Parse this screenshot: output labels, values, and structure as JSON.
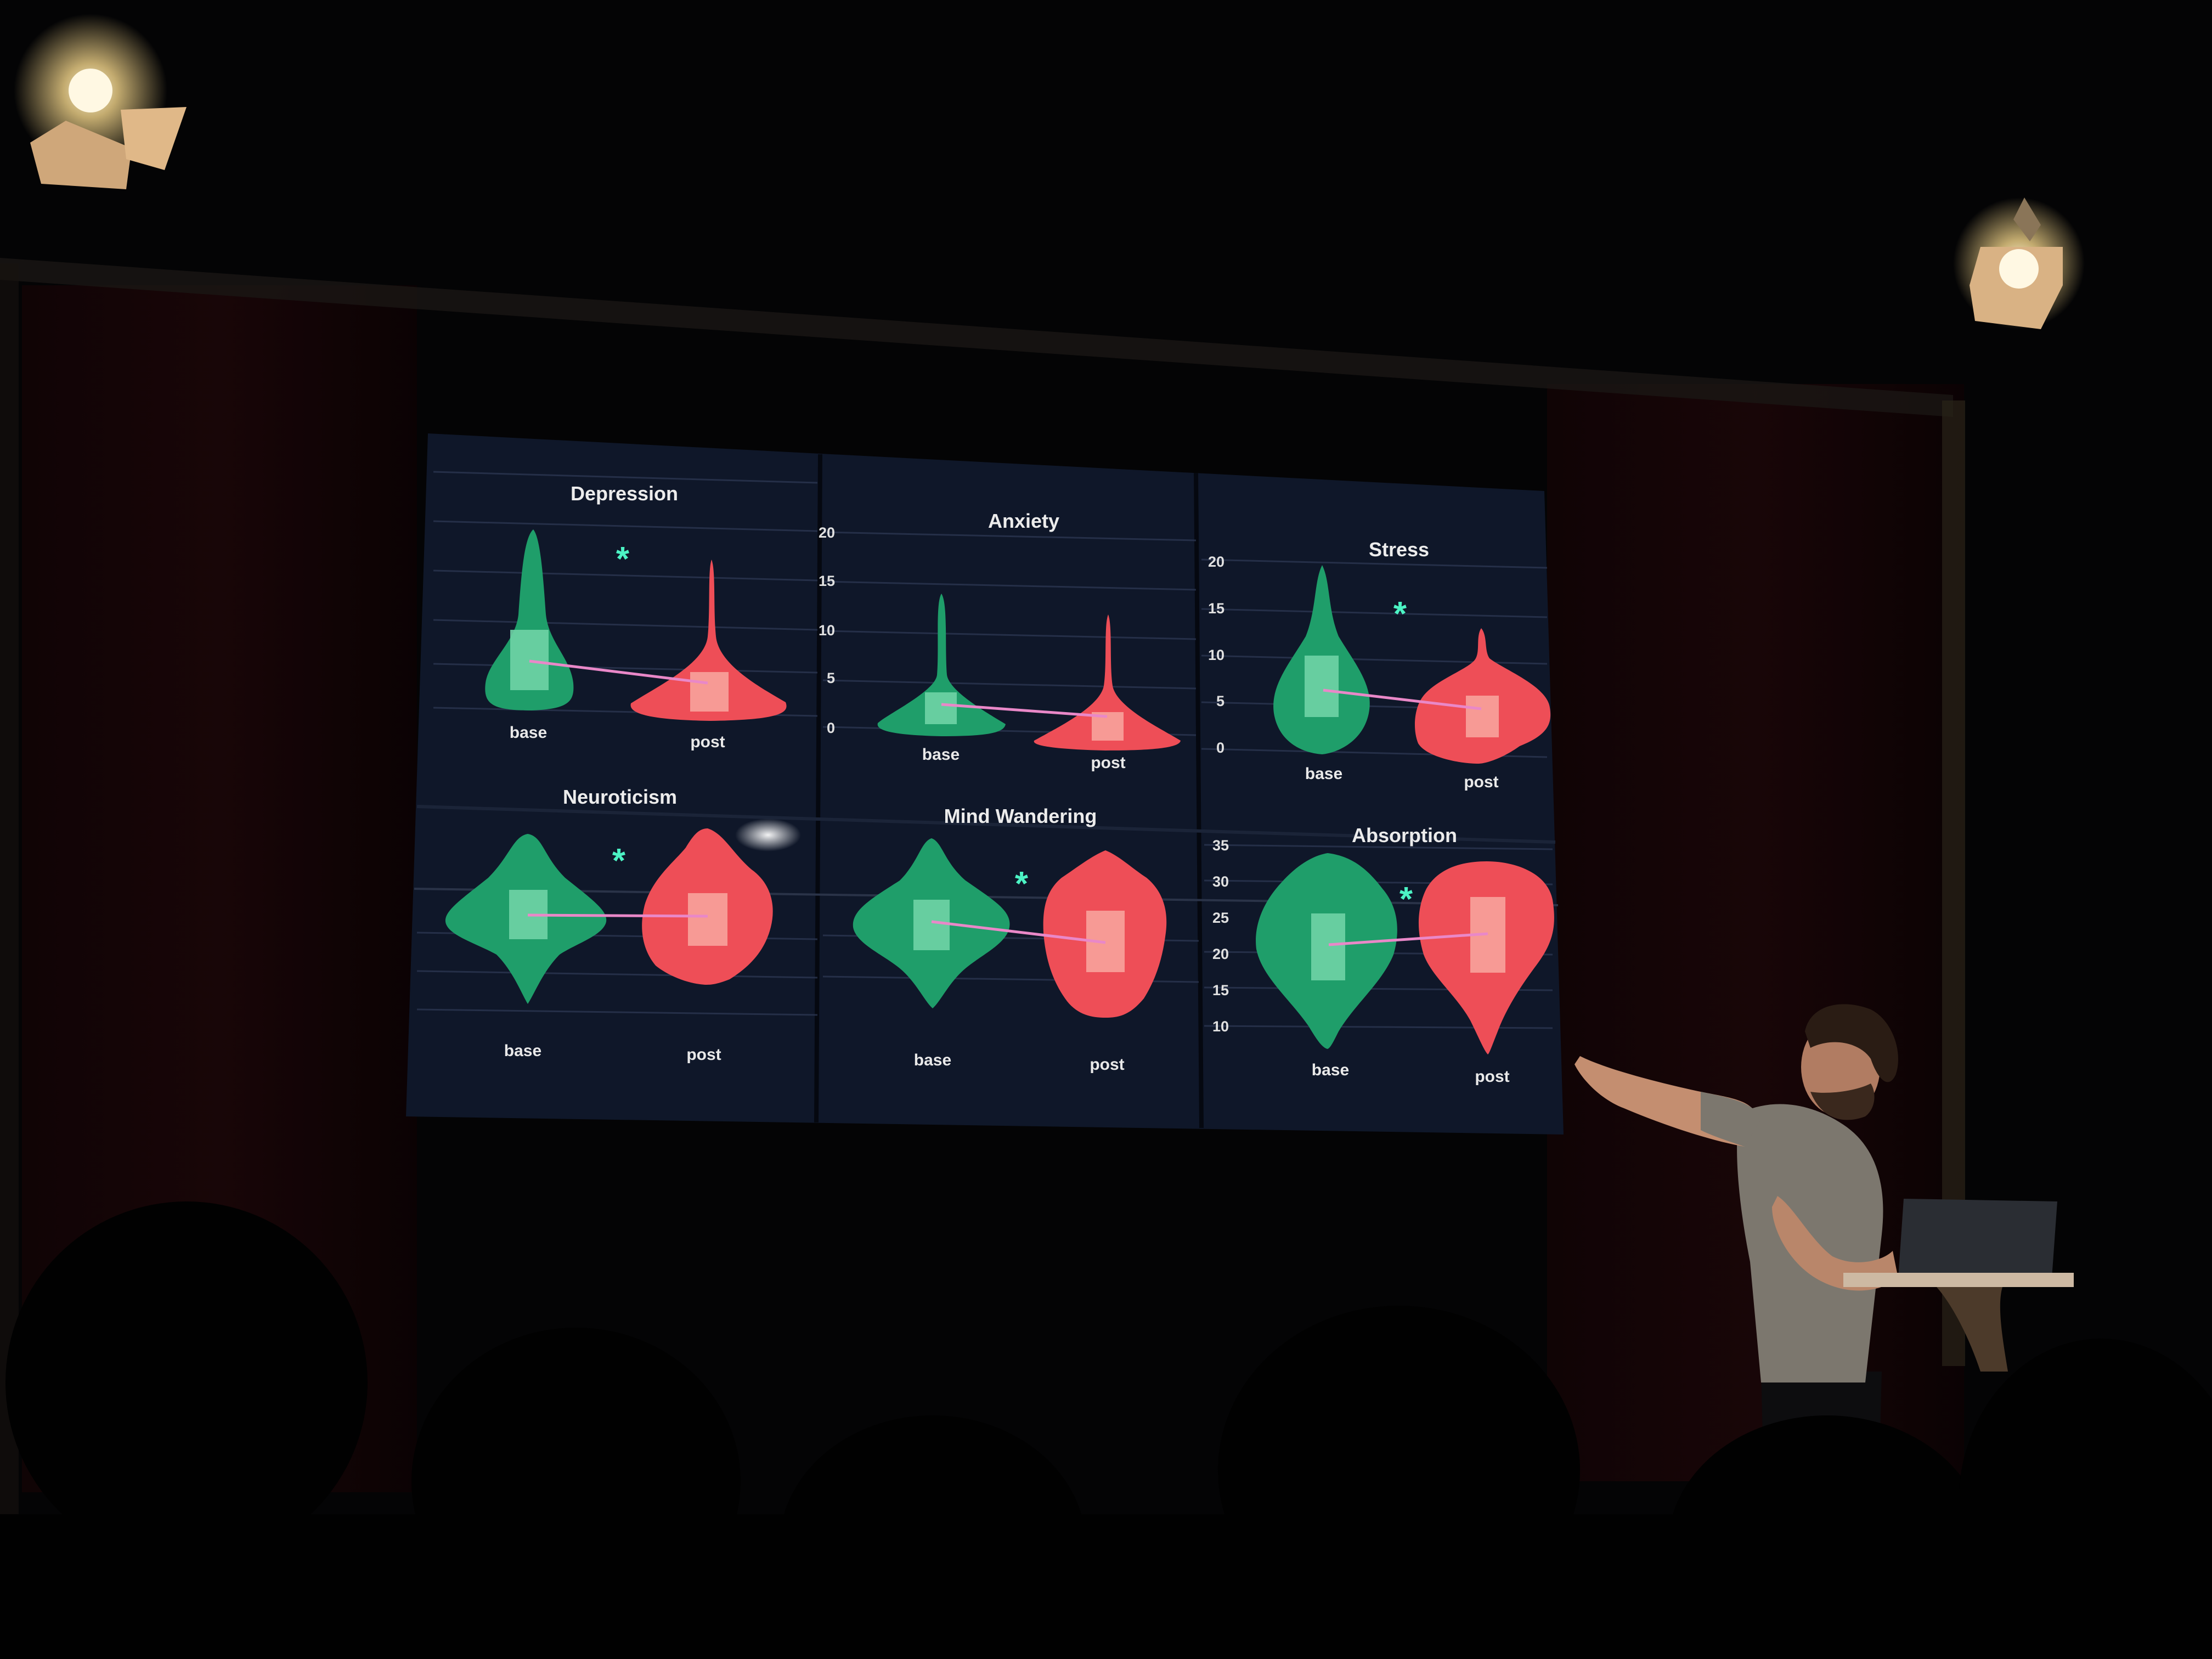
{
  "scene": {
    "description_colors": {
      "background": "#050507",
      "screen": "#111a2e",
      "base_violin": "#1f9e6a",
      "base_box": "#6fd3a6",
      "post_violin": "#ee4e57",
      "post_box": "#f7a39c",
      "mean_line": "#e988c8",
      "significance": "#4cf3c4"
    },
    "panels": [
      {
        "id": "depression",
        "title": "Depression",
        "significant": true,
        "star": "*",
        "ticks": [],
        "categories": [
          "base",
          "post"
        ]
      },
      {
        "id": "anxiety",
        "title": "Anxiety",
        "significant": false,
        "star": "",
        "ticks": [
          "0",
          "5",
          "10",
          "15",
          "20"
        ],
        "categories": [
          "base",
          "post"
        ]
      },
      {
        "id": "stress",
        "title": "Stress",
        "significant": true,
        "star": "*",
        "ticks": [
          "0",
          "5",
          "10",
          "15",
          "20"
        ],
        "categories": [
          "base",
          "post"
        ]
      },
      {
        "id": "neuroticism",
        "title": "Neuroticism",
        "significant": true,
        "star": "*",
        "ticks": [],
        "categories": [
          "base",
          "post"
        ]
      },
      {
        "id": "mind-wandering",
        "title": "Mind Wandering",
        "significant": true,
        "star": "*",
        "ticks": [],
        "categories": [
          "base",
          "post"
        ]
      },
      {
        "id": "absorption",
        "title": "Absorption",
        "significant": true,
        "star": "*",
        "ticks": [
          "10",
          "15",
          "20",
          "25",
          "30",
          "35"
        ],
        "categories": [
          "base",
          "post"
        ]
      }
    ]
  }
}
